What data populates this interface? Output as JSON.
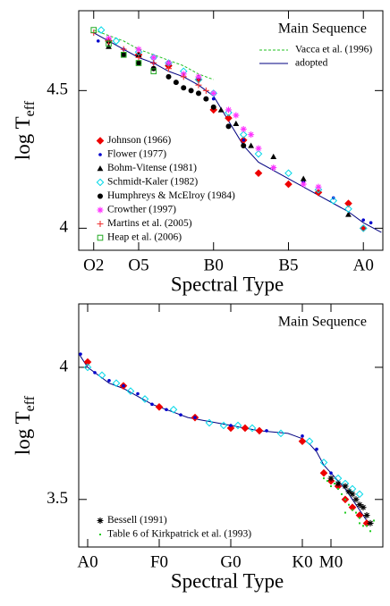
{
  "chart_data": [
    {
      "type": "scatter",
      "annotation": "Main Sequence",
      "xlabel": "Spectral Type",
      "ylabel": "log T",
      "ylabel_subscript": "eff",
      "xlim": [
        1.0,
        21.3
      ],
      "ylim": [
        3.92,
        4.79
      ],
      "xticks": [
        {
          "value": 2,
          "label": "O2"
        },
        {
          "value": 5,
          "label": "O5"
        },
        {
          "value": 10,
          "label": "B0"
        },
        {
          "value": 15,
          "label": "B5"
        },
        {
          "value": 20,
          "label": "A0"
        }
      ],
      "yticks": [
        4,
        4.5
      ],
      "legend": "lower left",
      "series": [
        {
          "name": "Vacca et al. (1996)",
          "color": "#22c022",
          "marker": "none",
          "dash": true,
          "x": [
            2,
            3,
            4,
            5,
            6,
            7,
            8,
            9,
            10
          ],
          "values": [
            4.72,
            4.7,
            4.68,
            4.65,
            4.63,
            4.61,
            4.59,
            4.56,
            4.54
          ]
        },
        {
          "name": "adopted",
          "color": "#000080",
          "marker": "none",
          "dash": false,
          "x": [
            2,
            3,
            4,
            5,
            6,
            7,
            8,
            9,
            10,
            11,
            12,
            13,
            15,
            17,
            19,
            20,
            21.2
          ],
          "values": [
            4.71,
            4.68,
            4.65,
            4.62,
            4.6,
            4.57,
            4.55,
            4.52,
            4.48,
            4.39,
            4.3,
            4.24,
            4.18,
            4.12,
            4.06,
            4.02,
            3.985
          ]
        },
        {
          "name": "Johnson (1966)",
          "color": "#ee0000",
          "marker": "diamond",
          "x": [
            3,
            5,
            7,
            9,
            10,
            11,
            12,
            13,
            15,
            17,
            19,
            20
          ],
          "values": [
            4.68,
            4.63,
            4.59,
            4.54,
            4.43,
            4.4,
            4.32,
            4.2,
            4.16,
            4.13,
            4.09,
            4.0
          ]
        },
        {
          "name": "Flower (1977)",
          "color": "#0000cc",
          "marker": "dot",
          "x": [
            2.3,
            4,
            6,
            8,
            10,
            12,
            14,
            16,
            18,
            20,
            20.5
          ],
          "values": [
            4.68,
            4.65,
            4.6,
            4.56,
            4.47,
            4.32,
            4.22,
            4.17,
            4.11,
            4.03,
            4.02
          ]
        },
        {
          "name": "Bohm-Vitense (1981)",
          "color": "#000000",
          "marker": "triangle",
          "x": [
            3,
            5,
            7,
            9,
            10.5,
            11.5,
            12.5,
            14,
            16,
            19
          ],
          "values": [
            4.66,
            4.63,
            4.6,
            4.55,
            4.43,
            4.38,
            4.3,
            4.26,
            4.18,
            4.05
          ]
        },
        {
          "name": "Schmidt-Kaler (1982)",
          "color": "#00d8e8",
          "marker": "diamond-open",
          "x": [
            2.5,
            3.5,
            5,
            6,
            7,
            8,
            9,
            10,
            11,
            12,
            13,
            15,
            17,
            18,
            19,
            20
          ],
          "values": [
            4.72,
            4.68,
            4.64,
            4.62,
            4.6,
            4.57,
            4.54,
            4.49,
            4.42,
            4.34,
            4.27,
            4.2,
            4.14,
            4.1,
            4.07,
            4.0
          ]
        },
        {
          "name": "Humphreys & McElroy (1984)",
          "color": "#000000",
          "marker": "circle",
          "x": [
            3,
            4,
            5,
            6,
            7,
            7.5,
            8,
            8.5,
            9,
            9.5,
            10,
            11,
            12
          ],
          "values": [
            4.68,
            4.63,
            4.6,
            4.58,
            4.55,
            4.53,
            4.51,
            4.5,
            4.49,
            4.47,
            4.44,
            4.37,
            4.3
          ]
        },
        {
          "name": "Crowther (1997)",
          "color": "#ff33ff",
          "marker": "asterisk",
          "x": [
            3,
            5,
            6,
            7,
            8,
            9,
            10,
            11,
            11.5,
            12,
            12.5,
            13,
            14,
            16,
            17
          ],
          "values": [
            4.69,
            4.65,
            4.62,
            4.6,
            4.56,
            4.55,
            4.49,
            4.43,
            4.41,
            4.36,
            4.34,
            4.29,
            4.22,
            4.16,
            4.15
          ]
        },
        {
          "name": "Martins et al. (2005)",
          "color": "#ee3333",
          "marker": "plus",
          "x": [
            2,
            3,
            4,
            5,
            6,
            7,
            8,
            9,
            9.5
          ],
          "values": [
            4.71,
            4.68,
            4.65,
            4.62,
            4.6,
            4.58,
            4.55,
            4.52,
            4.5
          ]
        },
        {
          "name": "Heap et al. (2006)",
          "color": "#22aa22",
          "marker": "square-open",
          "x": [
            2,
            3,
            4,
            5,
            6
          ],
          "values": [
            4.72,
            4.67,
            4.63,
            4.6,
            4.57
          ]
        }
      ]
    },
    {
      "type": "scatter",
      "annotation": "Main Sequence",
      "xlabel": "Spectral Type",
      "ylabel": "log T",
      "ylabel_subscript": "eff",
      "xlim": [
        -1.25,
        41.25
      ],
      "ylim": [
        3.32,
        4.24
      ],
      "xticks": [
        {
          "value": 0,
          "label": "A0"
        },
        {
          "value": 10,
          "label": "F0"
        },
        {
          "value": 20,
          "label": "G0"
        },
        {
          "value": 30,
          "label": "K0"
        },
        {
          "value": 34,
          "label": "M0"
        }
      ],
      "yticks": [
        3.5,
        4
      ],
      "legend": "lower left",
      "series": [
        {
          "color": "#000080",
          "marker": "none",
          "dash": false,
          "x": [
            -1.2,
            0,
            1,
            2,
            3,
            5,
            7,
            9,
            10,
            12,
            14,
            16,
            18,
            20,
            22,
            24,
            26,
            28,
            29,
            30,
            31,
            32,
            33,
            34,
            35,
            36,
            37,
            38,
            39
          ],
          "values": [
            4.05,
            4.0,
            3.98,
            3.96,
            3.94,
            3.92,
            3.89,
            3.86,
            3.85,
            3.83,
            3.81,
            3.8,
            3.79,
            3.78,
            3.77,
            3.76,
            3.755,
            3.75,
            3.74,
            3.73,
            3.71,
            3.68,
            3.63,
            3.6,
            3.57,
            3.54,
            3.5,
            3.46,
            3.42
          ]
        },
        {
          "color": "#ee0000",
          "marker": "diamond",
          "x": [
            0,
            5,
            10,
            15,
            20,
            22,
            24,
            30,
            33,
            34,
            35,
            36,
            37,
            38,
            39
          ],
          "values": [
            4.02,
            3.93,
            3.85,
            3.81,
            3.77,
            3.77,
            3.76,
            3.72,
            3.6,
            3.57,
            3.55,
            3.5,
            3.47,
            3.44,
            3.41
          ]
        },
        {
          "color": "#0000cc",
          "marker": "dot",
          "x": [
            -1,
            1,
            3,
            5,
            7,
            9,
            11,
            13,
            15,
            20,
            25,
            30,
            32,
            34
          ],
          "values": [
            4.05,
            3.98,
            3.95,
            3.93,
            3.9,
            3.86,
            3.84,
            3.82,
            3.81,
            3.78,
            3.76,
            3.74,
            3.69,
            3.6
          ]
        },
        {
          "color": "#00d8e8",
          "marker": "diamond-open",
          "x": [
            0,
            2,
            4,
            6,
            8,
            12,
            17,
            19,
            21,
            23,
            27,
            31,
            33,
            35,
            36,
            37,
            38
          ],
          "values": [
            4.0,
            3.97,
            3.94,
            3.91,
            3.88,
            3.84,
            3.79,
            3.78,
            3.78,
            3.77,
            3.75,
            3.72,
            3.64,
            3.58,
            3.56,
            3.54,
            3.52
          ]
        },
        {
          "name": "Bessell (1991)",
          "color": "#000000",
          "marker": "asterisk",
          "x": [
            34,
            35,
            36,
            36.5,
            37,
            37.5,
            38,
            38.5,
            39,
            39.5
          ],
          "values": [
            3.58,
            3.56,
            3.55,
            3.53,
            3.52,
            3.5,
            3.48,
            3.47,
            3.44,
            3.41
          ]
        },
        {
          "name": "Table 6 of Kirkpatrick et al. (1993)",
          "color": "#22cc22",
          "marker": "point",
          "x": [
            33,
            33.5,
            34,
            34.5,
            35,
            35.5,
            36,
            36.5,
            37,
            37.5,
            38,
            38.5,
            39,
            39.5,
            40,
            36,
            38
          ],
          "values": [
            3.58,
            3.57,
            3.55,
            3.56,
            3.54,
            3.52,
            3.5,
            3.48,
            3.46,
            3.45,
            3.43,
            3.4,
            3.4,
            3.38,
            3.42,
            3.45,
            3.41
          ]
        }
      ]
    }
  ]
}
